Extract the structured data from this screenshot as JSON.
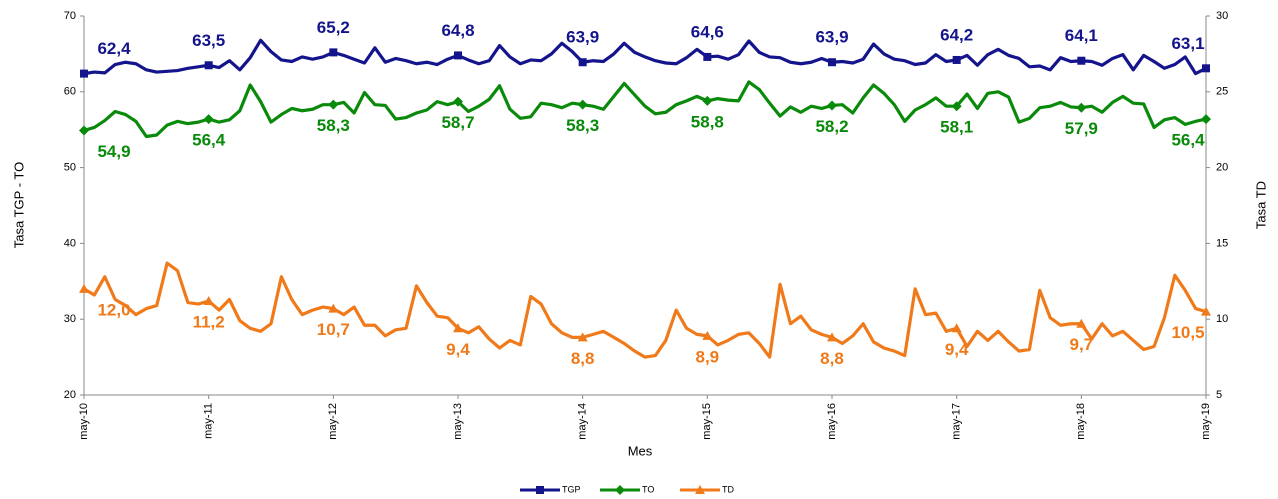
{
  "chart_data": {
    "type": "line",
    "x_label": "Mes",
    "y_label": "Tasa TGP - TO",
    "y2_label": "Tasa TD",
    "categories": [
      "may-10",
      null,
      null,
      null,
      null,
      null,
      null,
      null,
      null,
      null,
      null,
      null,
      "may-11",
      null,
      null,
      null,
      null,
      null,
      null,
      null,
      null,
      null,
      null,
      null,
      "may-12",
      null,
      null,
      null,
      null,
      null,
      null,
      null,
      null,
      null,
      null,
      null,
      "may-13",
      null,
      null,
      null,
      null,
      null,
      null,
      null,
      null,
      null,
      null,
      null,
      "may-14",
      null,
      null,
      null,
      null,
      null,
      null,
      null,
      null,
      null,
      null,
      null,
      "may-15",
      null,
      null,
      null,
      null,
      null,
      null,
      null,
      null,
      null,
      null,
      null,
      "may-16",
      null,
      null,
      null,
      null,
      null,
      null,
      null,
      null,
      null,
      null,
      null,
      "may-17",
      null,
      null,
      null,
      null,
      null,
      null,
      null,
      null,
      null,
      null,
      null,
      "may-18",
      null,
      null,
      null,
      null,
      null,
      null,
      null,
      null,
      null,
      null,
      null,
      "may-19"
    ],
    "ylim": [
      20,
      70
    ],
    "yticks": [
      20,
      30,
      40,
      50,
      60,
      70
    ],
    "y2lim": [
      5,
      30
    ],
    "y2ticks": [
      5,
      10,
      15,
      20,
      25,
      30
    ],
    "grid": false,
    "legend": "bottom",
    "series": [
      {
        "name": "TGP",
        "color": "#14148c",
        "marker": "square",
        "values": [
          62.4,
          62.6,
          62.5,
          63.6,
          63.9,
          63.7,
          62.9,
          62.6,
          62.7,
          62.8,
          63.1,
          63.3,
          63.5,
          63.2,
          64.1,
          62.9,
          64.5,
          66.8,
          65.3,
          64.2,
          64.0,
          64.6,
          64.3,
          64.6,
          65.2,
          64.8,
          64.3,
          63.8,
          65.8,
          63.9,
          64.4,
          64.1,
          63.7,
          63.9,
          63.6,
          64.3,
          64.8,
          64.2,
          63.7,
          64.1,
          66.1,
          64.6,
          63.7,
          64.2,
          64.1,
          65.0,
          66.4,
          65.3,
          63.9,
          64.1,
          64.0,
          65.0,
          66.4,
          65.2,
          64.6,
          64.1,
          63.8,
          63.7,
          64.5,
          65.6,
          64.6,
          64.7,
          64.3,
          64.9,
          66.7,
          65.2,
          64.6,
          64.5,
          63.9,
          63.7,
          63.9,
          64.4,
          63.9,
          64.0,
          63.8,
          64.3,
          66.3,
          65.0,
          64.3,
          64.1,
          63.6,
          63.8,
          64.9,
          64.0,
          64.2,
          64.8,
          63.5,
          64.9,
          65.6,
          64.8,
          64.4,
          63.3,
          63.4,
          62.9,
          64.5,
          64.0,
          64.1,
          64.0,
          63.5,
          64.4,
          64.9,
          62.9,
          64.8,
          64.0,
          63.1,
          63.6,
          64.6,
          62.4,
          63.1
        ],
        "value_labels": [
          "62,4",
          null,
          null,
          null,
          null,
          null,
          null,
          null,
          null,
          null,
          null,
          null,
          "63,5",
          null,
          null,
          null,
          null,
          null,
          null,
          null,
          null,
          null,
          null,
          null,
          "65,2",
          null,
          null,
          null,
          null,
          null,
          null,
          null,
          null,
          null,
          null,
          null,
          "64,8",
          null,
          null,
          null,
          null,
          null,
          null,
          null,
          null,
          null,
          null,
          null,
          "63,9",
          null,
          null,
          null,
          null,
          null,
          null,
          null,
          null,
          null,
          null,
          null,
          "64,6",
          null,
          null,
          null,
          null,
          null,
          null,
          null,
          null,
          null,
          null,
          null,
          "63,9",
          null,
          null,
          null,
          null,
          null,
          null,
          null,
          null,
          null,
          null,
          null,
          "64,2",
          null,
          null,
          null,
          null,
          null,
          null,
          null,
          null,
          null,
          null,
          null,
          "64,1",
          null,
          null,
          null,
          null,
          null,
          null,
          null,
          null,
          null,
          null,
          null,
          "63,1"
        ]
      },
      {
        "name": "TO",
        "color": "#0a8a0a",
        "marker": "diamond",
        "values": [
          54.9,
          55.3,
          56.2,
          57.4,
          57.0,
          56.1,
          54.1,
          54.3,
          55.6,
          56.1,
          55.8,
          56.0,
          56.4,
          56.0,
          56.3,
          57.5,
          60.9,
          58.7,
          56.0,
          57.0,
          57.8,
          57.5,
          57.7,
          58.3,
          58.3,
          58.6,
          57.2,
          59.9,
          58.3,
          58.2,
          56.4,
          56.6,
          57.2,
          57.6,
          58.7,
          58.3,
          58.7,
          57.4,
          58.1,
          59.0,
          60.8,
          57.7,
          56.5,
          56.7,
          58.5,
          58.3,
          57.9,
          58.5,
          58.3,
          58.1,
          57.7,
          59.4,
          61.1,
          59.6,
          58.1,
          57.1,
          57.3,
          58.3,
          58.8,
          59.4,
          58.8,
          59.1,
          58.9,
          58.8,
          61.3,
          60.3,
          58.5,
          56.8,
          58.0,
          57.3,
          58.1,
          57.8,
          58.2,
          58.3,
          57.2,
          59.2,
          60.9,
          59.8,
          58.3,
          56.1,
          57.6,
          58.3,
          59.2,
          58.1,
          58.1,
          59.7,
          57.8,
          59.8,
          60.0,
          59.3,
          56.0,
          56.5,
          57.9,
          58.1,
          58.6,
          58.0,
          57.9,
          58.1,
          57.3,
          58.6,
          59.4,
          58.5,
          58.4,
          55.3,
          56.3,
          56.6,
          55.7,
          56.1,
          56.4
        ],
        "value_labels": [
          "54,9",
          null,
          null,
          null,
          null,
          null,
          null,
          null,
          null,
          null,
          null,
          null,
          "56,4",
          null,
          null,
          null,
          null,
          null,
          null,
          null,
          null,
          null,
          null,
          null,
          "58,3",
          null,
          null,
          null,
          null,
          null,
          null,
          null,
          null,
          null,
          null,
          null,
          "58,7",
          null,
          null,
          null,
          null,
          null,
          null,
          null,
          null,
          null,
          null,
          null,
          "58,3",
          null,
          null,
          null,
          null,
          null,
          null,
          null,
          null,
          null,
          null,
          null,
          "58,8",
          null,
          null,
          null,
          null,
          null,
          null,
          null,
          null,
          null,
          null,
          null,
          "58,2",
          null,
          null,
          null,
          null,
          null,
          null,
          null,
          null,
          null,
          null,
          null,
          "58,1",
          null,
          null,
          null,
          null,
          null,
          null,
          null,
          null,
          null,
          null,
          null,
          "57,9",
          null,
          null,
          null,
          null,
          null,
          null,
          null,
          null,
          null,
          null,
          null,
          "56,4"
        ]
      },
      {
        "name": "TD",
        "color": "#f07a1a",
        "marker": "triangle",
        "axis": "y2",
        "values": [
          12.0,
          11.6,
          12.8,
          11.3,
          10.9,
          10.3,
          10.7,
          10.9,
          13.7,
          13.2,
          11.1,
          11.0,
          11.2,
          10.6,
          11.3,
          9.9,
          9.4,
          9.2,
          9.7,
          12.8,
          11.3,
          10.3,
          10.6,
          10.8,
          10.7,
          10.3,
          10.8,
          9.6,
          9.6,
          8.9,
          9.3,
          9.4,
          12.2,
          11.1,
          10.2,
          10.1,
          9.4,
          9.1,
          9.5,
          8.7,
          8.1,
          8.6,
          8.3,
          11.5,
          11.0,
          9.7,
          9.1,
          8.8,
          8.8,
          9.0,
          9.2,
          8.8,
          8.4,
          7.9,
          7.5,
          7.6,
          8.6,
          10.6,
          9.4,
          9.0,
          8.9,
          8.3,
          8.6,
          9.0,
          9.1,
          8.4,
          7.5,
          12.3,
          9.7,
          10.2,
          9.3,
          9.0,
          8.8,
          8.4,
          8.9,
          9.7,
          8.5,
          8.1,
          7.9,
          7.6,
          12.0,
          10.3,
          10.4,
          9.2,
          9.4,
          8.2,
          9.2,
          8.6,
          9.2,
          8.5,
          7.9,
          8.0,
          11.9,
          10.1,
          9.6,
          9.7,
          9.7,
          8.7,
          9.7,
          8.9,
          9.2,
          8.6,
          8.0,
          8.2,
          10.1,
          12.9,
          11.9,
          10.7,
          10.5
        ],
        "value_labels": [
          "12,0",
          null,
          null,
          null,
          null,
          null,
          null,
          null,
          null,
          null,
          null,
          null,
          "11,2",
          null,
          null,
          null,
          null,
          null,
          null,
          null,
          null,
          null,
          null,
          null,
          "10,7",
          null,
          null,
          null,
          null,
          null,
          null,
          null,
          null,
          null,
          null,
          null,
          "9,4",
          null,
          null,
          null,
          null,
          null,
          null,
          null,
          null,
          null,
          null,
          null,
          "8,8",
          null,
          null,
          null,
          null,
          null,
          null,
          null,
          null,
          null,
          null,
          null,
          "8,9",
          null,
          null,
          null,
          null,
          null,
          null,
          null,
          null,
          null,
          null,
          null,
          "8,8",
          null,
          null,
          null,
          null,
          null,
          null,
          null,
          null,
          null,
          null,
          null,
          "9,4",
          null,
          null,
          null,
          null,
          null,
          null,
          null,
          null,
          null,
          null,
          null,
          "9,7",
          null,
          null,
          null,
          null,
          null,
          null,
          null,
          null,
          null,
          null,
          null,
          "10,5"
        ]
      }
    ]
  }
}
